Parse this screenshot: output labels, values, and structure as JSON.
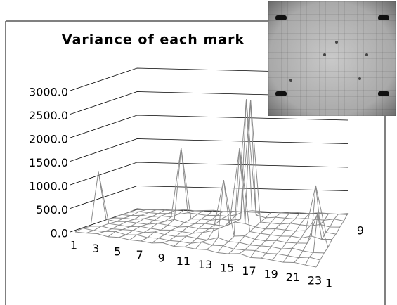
{
  "chart_data": {
    "type": "surface3d",
    "title": "Variance of each mark",
    "categories": [
      "1",
      null,
      "3",
      null,
      "5",
      null,
      "7",
      null,
      "9",
      null,
      "11",
      null,
      "13",
      null,
      "15",
      null,
      "17",
      null,
      "19",
      null,
      "21",
      null,
      "23"
    ],
    "rows": [
      "1",
      null,
      null,
      null,
      null,
      null,
      null,
      null,
      "9"
    ],
    "values": [
      [
        0,
        10,
        30,
        0,
        20,
        0,
        10,
        0,
        40,
        0,
        20,
        10,
        30,
        0,
        10,
        50,
        0,
        20,
        10,
        0,
        30,
        10,
        0
      ],
      [
        20,
        0,
        10,
        40,
        0,
        30,
        0,
        20,
        0,
        10,
        0,
        60,
        20,
        40,
        0,
        10,
        30,
        0,
        20,
        10,
        0,
        40,
        10
      ],
      [
        0,
        30,
        0,
        10,
        20,
        0,
        40,
        10,
        0,
        30,
        10,
        0,
        80,
        20,
        30,
        0,
        10,
        20,
        0,
        40,
        10,
        0,
        20
      ],
      [
        1100,
        20,
        10,
        0,
        30,
        10,
        0,
        20,
        10,
        0,
        40,
        100,
        1200,
        30,
        60,
        10,
        0,
        30,
        10,
        20,
        40,
        700,
        0
      ],
      [
        30,
        0,
        20,
        10,
        0,
        40,
        20,
        0,
        30,
        10,
        20,
        50,
        150,
        1800,
        40,
        20,
        10,
        0,
        20,
        0,
        60,
        10,
        30
      ],
      [
        0,
        10,
        0,
        30,
        10,
        0,
        60,
        10,
        0,
        20,
        10,
        0,
        100,
        80,
        30,
        0,
        20,
        10,
        0,
        30,
        1000,
        20,
        0
      ],
      [
        10,
        0,
        20,
        0,
        30,
        20,
        1500,
        0,
        10,
        0,
        30,
        20,
        60,
        2600,
        20,
        10,
        0,
        30,
        10,
        0,
        40,
        0,
        10
      ],
      [
        0,
        20,
        10,
        0,
        10,
        0,
        40,
        20,
        0,
        10,
        0,
        40,
        2500,
        50,
        0,
        20,
        10,
        0,
        20,
        10,
        0,
        30,
        0
      ],
      [
        20,
        0,
        0,
        10,
        0,
        20,
        0,
        10,
        20,
        0,
        10,
        0,
        30,
        20,
        10,
        0,
        20,
        10,
        0,
        20,
        10,
        0,
        20
      ]
    ],
    "color": "#8a8a8a",
    "zlim": [
      0,
      3000
    ],
    "zticks": [
      {
        "value": 0,
        "label": "0.0"
      },
      {
        "value": 500,
        "label": "500.0"
      },
      {
        "value": 1000,
        "label": "1000.0"
      },
      {
        "value": 1500,
        "label": "1500.0"
      },
      {
        "value": 2000,
        "label": "2000.0"
      },
      {
        "value": 2500,
        "label": "2500.0"
      },
      {
        "value": 3000,
        "label": "3000.0"
      }
    ],
    "grid": true
  }
}
